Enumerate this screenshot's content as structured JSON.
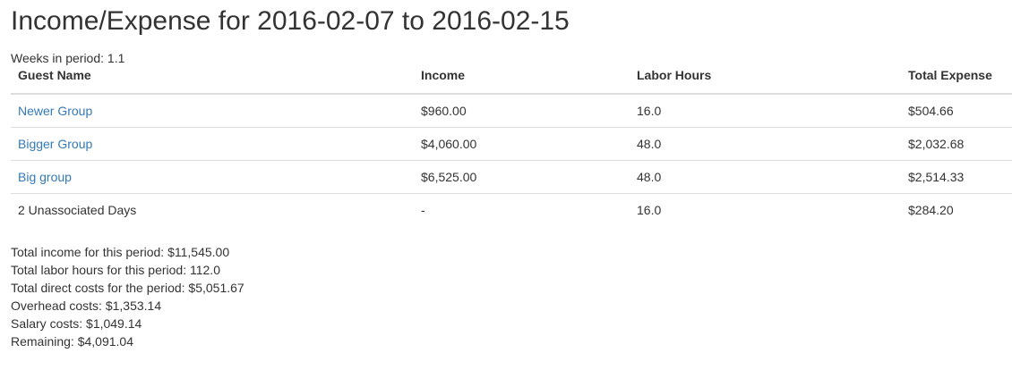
{
  "page": {
    "title": "Income/Expense for 2016-02-07 to 2016-02-15",
    "weeks_in_period": "Weeks in period: 1.1"
  },
  "table": {
    "headers": {
      "guest_name": "Guest Name",
      "income": "Income",
      "labor_hours": "Labor Hours",
      "total_expense": "Total Expense"
    },
    "rows": [
      {
        "name": "Newer Group",
        "income": "$960.00",
        "labor_hours": "16.0",
        "total_expense": "$504.66",
        "is_link": true
      },
      {
        "name": "Bigger Group",
        "income": "$4,060.00",
        "labor_hours": "48.0",
        "total_expense": "$2,032.68",
        "is_link": true
      },
      {
        "name": "Big group",
        "income": "$6,525.00",
        "labor_hours": "48.0",
        "total_expense": "$2,514.33",
        "is_link": true
      },
      {
        "name": "2 Unassociated Days",
        "income": "-",
        "labor_hours": "16.0",
        "total_expense": "$284.20",
        "is_link": false
      }
    ]
  },
  "summary": {
    "total_income": "Total income for this period: $11,545.00",
    "total_labor_hours": "Total labor hours for this period: 112.0",
    "total_direct_costs": "Total direct costs for the period: $5,051.67",
    "overhead_costs": "Overhead costs: $1,353.14",
    "salary_costs": "Salary costs: $1,049.14",
    "remaining": "Remaining: $4,091.04"
  },
  "colors": {
    "link": "#337ab7",
    "text": "#333333",
    "border": "#dddddd"
  }
}
